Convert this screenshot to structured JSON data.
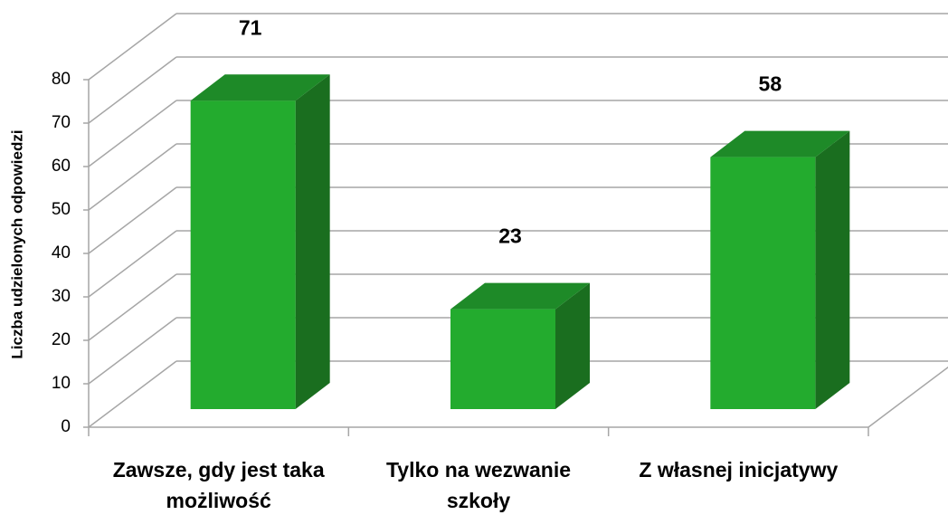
{
  "chart_data": {
    "type": "bar3d",
    "y_axis_label": "Liczba udzielonych odpowiedzi",
    "categories": [
      "Zawsze, gdy jest taka możliwość",
      "Tylko na wezwanie szkoły",
      "Z własnej inicjatywy"
    ],
    "values": [
      71,
      23,
      58
    ],
    "color": "#23ab2e",
    "ylim": [
      0,
      80
    ],
    "yticks": [
      0,
      10,
      20,
      30,
      40,
      50,
      60,
      70,
      80
    ],
    "grid": true
  }
}
